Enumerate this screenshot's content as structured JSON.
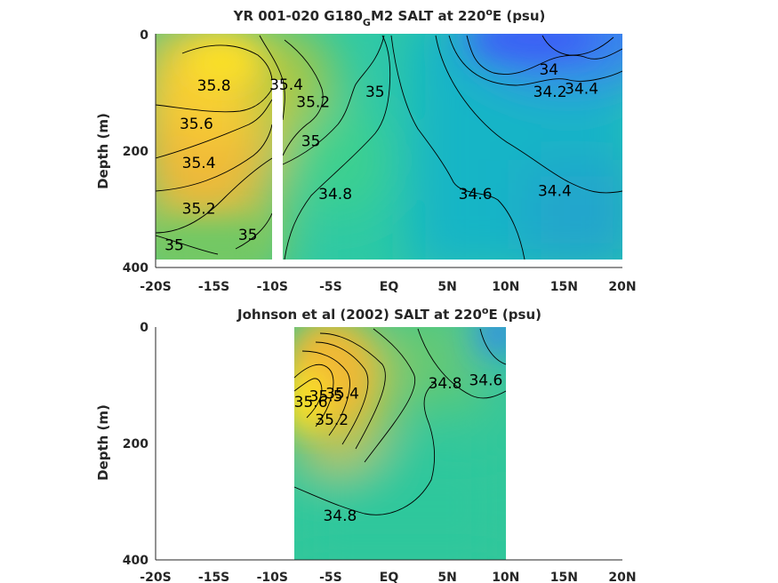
{
  "chart_data": [
    {
      "type": "heatmap",
      "title_pre": "YR 001-020 G180",
      "title_sub": "G",
      "title_mid": "M2 SALT at 220",
      "title_sup": "o",
      "title_post": "E (psu)",
      "ylabel": "Depth (m)",
      "xlim": [
        -20,
        20
      ],
      "ylim": [
        0,
        400
      ],
      "x_ticks": [
        "-20S",
        "-15S",
        "-10S",
        "-5S",
        "EQ",
        "5N",
        "10N",
        "15N",
        "20N"
      ],
      "y_ticks": [
        "0",
        "200",
        "400"
      ],
      "data_extent": {
        "x": [
          -20,
          20
        ],
        "depth": [
          0,
          385
        ]
      },
      "gap_x": [
        -10,
        -9.4
      ],
      "contour_labels": [
        {
          "text": "35.8",
          "x": -15,
          "depth": 90
        },
        {
          "text": "35.6",
          "x": -16.5,
          "depth": 155
        },
        {
          "text": "35.4",
          "x": -16.3,
          "depth": 222
        },
        {
          "text": "35.2",
          "x": -16.3,
          "depth": 300
        },
        {
          "text": "35",
          "x": -18.4,
          "depth": 363
        },
        {
          "text": "35",
          "x": -12.1,
          "depth": 345
        },
        {
          "text": "35.4",
          "x": -8.8,
          "depth": 88
        },
        {
          "text": "35.2",
          "x": -6.5,
          "depth": 118
        },
        {
          "text": "35",
          "x": -6.7,
          "depth": 185
        },
        {
          "text": "35",
          "x": -1.2,
          "depth": 100
        },
        {
          "text": "34.8",
          "x": -4.6,
          "depth": 275
        },
        {
          "text": "34.6",
          "x": 7.4,
          "depth": 275
        },
        {
          "text": "34.4",
          "x": 14.2,
          "depth": 270
        },
        {
          "text": "34",
          "x": 13.7,
          "depth": 62
        },
        {
          "text": "34.2",
          "x": 13.8,
          "depth": 100
        },
        {
          "text": "34.4",
          "x": 16.5,
          "depth": 95
        }
      ]
    },
    {
      "type": "heatmap",
      "title_pre": "Johnson et al (2002) SALT at 220",
      "title_sub": "",
      "title_mid": "",
      "title_sup": "o",
      "title_post": "E (psu)",
      "ylabel": "Depth (m)",
      "xlim": [
        -20,
        20
      ],
      "ylim": [
        0,
        400
      ],
      "x_ticks": [
        "-20S",
        "-15S",
        "-10S",
        "-5S",
        "EQ",
        "5N",
        "10N",
        "15N",
        "20N"
      ],
      "y_ticks": [
        "0",
        "200",
        "400"
      ],
      "data_extent": {
        "x": [
          -8,
          10
        ],
        "depth": [
          0,
          400
        ]
      },
      "gap_x": null,
      "contour_labels": [
        {
          "text": "34.8",
          "x": 4.8,
          "depth": 98
        },
        {
          "text": "34.6",
          "x": 8.3,
          "depth": 92
        },
        {
          "text": "35.6",
          "x": -6.7,
          "depth": 130
        },
        {
          "text": "35.5",
          "x": -5.4,
          "depth": 120
        },
        {
          "text": "35.4",
          "x": -4.0,
          "depth": 115
        },
        {
          "text": "35.2",
          "x": -4.9,
          "depth": 160
        },
        {
          "text": "34.8",
          "x": -4.2,
          "depth": 325
        }
      ]
    }
  ]
}
